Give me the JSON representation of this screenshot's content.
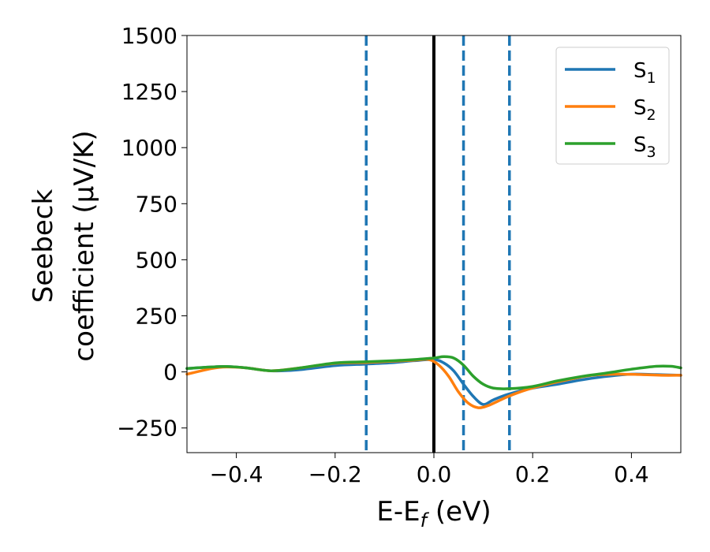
{
  "chart_data": {
    "type": "line",
    "xlabel": "E-E_f (eV)",
    "ylabel": [
      "Seebeck",
      "coefficient  (μV/K)"
    ],
    "xlim": [
      -0.5,
      0.5
    ],
    "ylim": [
      -360,
      1500
    ],
    "xticks": [
      -0.4,
      -0.2,
      0.0,
      0.2,
      0.4
    ],
    "xtick_labels": [
      "−0.4",
      "−0.2",
      "0.0",
      "0.2",
      "0.4"
    ],
    "yticks": [
      -250,
      0,
      250,
      500,
      750,
      1000,
      1250,
      1500
    ],
    "ytick_labels": [
      "−250",
      "0",
      "250",
      "500",
      "750",
      "1000",
      "1250",
      "1500"
    ],
    "grid": false,
    "legend_position": "top-right",
    "vertical_lines": [
      {
        "x": -0.137,
        "style": "dashed",
        "color": "#1f77b4"
      },
      {
        "x": 0.0,
        "style": "solid",
        "color": "#000000"
      },
      {
        "x": 0.06,
        "style": "dashed",
        "color": "#1f77b4"
      },
      {
        "x": 0.153,
        "style": "dashed",
        "color": "#1f77b4"
      }
    ],
    "series": [
      {
        "name": "S1",
        "label_main": "S",
        "label_sub": "1",
        "color": "#1f77b4",
        "x": [
          -0.5,
          -0.45,
          -0.42,
          -0.38,
          -0.33,
          -0.28,
          -0.2,
          -0.137,
          -0.08,
          -0.04,
          0.0,
          0.02,
          0.04,
          0.06,
          0.08,
          0.1,
          0.12,
          0.15,
          0.2,
          0.25,
          0.3,
          0.35,
          0.4,
          0.45,
          0.5
        ],
        "y": [
          15,
          22,
          24,
          18,
          5,
          8,
          28,
          35,
          42,
          50,
          55,
          40,
          5,
          -55,
          -110,
          -145,
          -125,
          -100,
          -72,
          -55,
          -35,
          -20,
          -10,
          -12,
          -15
        ]
      },
      {
        "name": "S2",
        "label_main": "S",
        "label_sub": "2",
        "color": "#ff7f0e",
        "x": [
          -0.5,
          -0.45,
          -0.42,
          -0.38,
          -0.33,
          -0.28,
          -0.2,
          -0.137,
          -0.08,
          -0.04,
          -0.01,
          0.01,
          0.03,
          0.05,
          0.07,
          0.09,
          0.11,
          0.13,
          0.15,
          0.18,
          0.22,
          0.27,
          0.32,
          0.37,
          0.42,
          0.46,
          0.5
        ],
        "y": [
          -10,
          15,
          22,
          18,
          5,
          15,
          38,
          42,
          48,
          52,
          55,
          30,
          -20,
          -90,
          -140,
          -160,
          -150,
          -130,
          -110,
          -85,
          -60,
          -35,
          -15,
          -10,
          -12,
          -15,
          -15
        ]
      },
      {
        "name": "S3",
        "label_main": "S",
        "label_sub": "3",
        "color": "#2ca02c",
        "x": [
          -0.5,
          -0.45,
          -0.42,
          -0.38,
          -0.33,
          -0.28,
          -0.2,
          -0.137,
          -0.08,
          -0.04,
          0.0,
          0.02,
          0.04,
          0.06,
          0.08,
          0.1,
          0.12,
          0.153,
          0.2,
          0.25,
          0.3,
          0.35,
          0.4,
          0.45,
          0.48,
          0.5
        ],
        "y": [
          15,
          22,
          24,
          18,
          5,
          15,
          40,
          45,
          50,
          55,
          62,
          68,
          62,
          30,
          -20,
          -55,
          -72,
          -75,
          -65,
          -40,
          -20,
          -5,
          12,
          25,
          25,
          18
        ]
      }
    ]
  }
}
